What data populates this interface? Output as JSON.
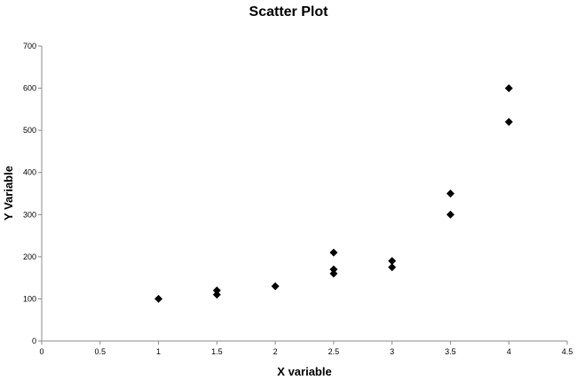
{
  "chart_data": {
    "type": "scatter",
    "title": "Scatter Plot",
    "xlabel": "X variable",
    "ylabel": "Y Variable",
    "xlim": [
      0,
      4.5
    ],
    "ylim": [
      0,
      700
    ],
    "xticks": [
      "0",
      "0.5",
      "1",
      "1.5",
      "2",
      "2.5",
      "3",
      "3.5",
      "4",
      "4.5"
    ],
    "yticks": [
      "0",
      "100",
      "200",
      "300",
      "400",
      "500",
      "600",
      "700"
    ],
    "grid": false,
    "legend": "none",
    "marker": "diamond",
    "marker_color": "#000000",
    "points": [
      {
        "x": 1,
        "y": 100
      },
      {
        "x": 1.5,
        "y": 120
      },
      {
        "x": 1.5,
        "y": 110
      },
      {
        "x": 2,
        "y": 130
      },
      {
        "x": 2.5,
        "y": 210
      },
      {
        "x": 2.5,
        "y": 170
      },
      {
        "x": 2.5,
        "y": 160
      },
      {
        "x": 3,
        "y": 190
      },
      {
        "x": 3,
        "y": 175
      },
      {
        "x": 3.5,
        "y": 350
      },
      {
        "x": 3.5,
        "y": 300
      },
      {
        "x": 4,
        "y": 600
      },
      {
        "x": 4,
        "y": 520
      }
    ]
  }
}
